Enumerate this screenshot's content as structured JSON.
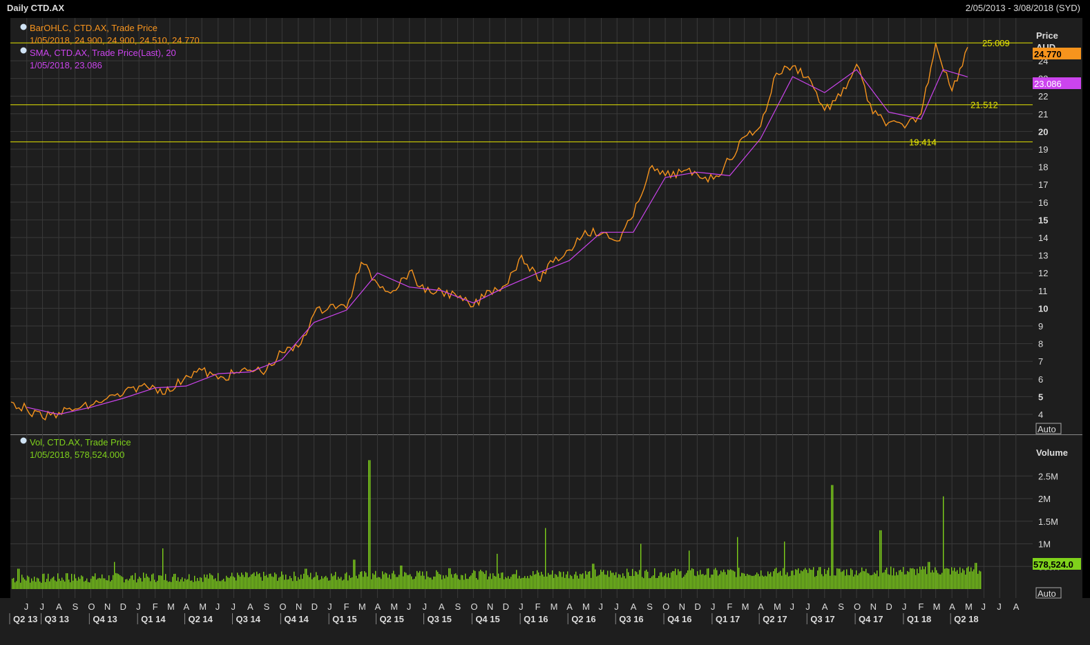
{
  "header": {
    "title": "Daily CTD.AX",
    "date_range": "2/05/2013 - 3/08/2018 (SYD)"
  },
  "price_panel": {
    "legend_ohlc": "BarOHLC, CTD.AX, Trade Price",
    "legend_ohlc_values": "1/05/2018, 24.900, 24.900, 24.510, 24.770",
    "legend_sma": "SMA, CTD.AX, Trade Price(Last),  20",
    "legend_sma_values": "1/05/2018, 23.086",
    "axis_title": "Price",
    "axis_unit": "AUD",
    "last_price_tag": "24.770",
    "sma_tag": "23.086",
    "auto_label": "Auto",
    "hlines": [
      {
        "value": 25.009,
        "label": "25.009"
      },
      {
        "value": 21.512,
        "label": "21.512"
      },
      {
        "value": 19.414,
        "label": "19.414"
      }
    ]
  },
  "volume_panel": {
    "legend_vol": "Vol, CTD.AX, Trade Price",
    "legend_vol_values": "1/05/2018, 578,524.000",
    "axis_title": "Volume",
    "last_volume_tag": "578,524.0",
    "auto_label": "Auto",
    "ticks": [
      "2.5M",
      "2M",
      "1.5M",
      "1M",
      "500K"
    ]
  },
  "x_axis": {
    "months": [
      "J",
      "J",
      "A",
      "S",
      "O",
      "N",
      "D",
      "J",
      "F",
      "M",
      "A",
      "M",
      "J",
      "J",
      "A",
      "S",
      "O",
      "N",
      "D",
      "J",
      "F",
      "M",
      "A",
      "M",
      "J",
      "J",
      "A",
      "S",
      "O",
      "N",
      "D",
      "J",
      "F",
      "M",
      "A",
      "M",
      "J",
      "J",
      "A",
      "S",
      "O",
      "N",
      "D",
      "J",
      "F",
      "M",
      "A",
      "M",
      "J",
      "J",
      "A",
      "S",
      "O",
      "N",
      "D",
      "J",
      "F",
      "M",
      "A",
      "M",
      "J",
      "J",
      "A"
    ],
    "quarters": [
      "Q2 13",
      "Q3 13",
      "Q4 13",
      "Q1 14",
      "Q2 14",
      "Q3 14",
      "Q4 14",
      "Q1 15",
      "Q2 15",
      "Q3 15",
      "Q4 15",
      "Q1 16",
      "Q2 16",
      "Q3 16",
      "Q4 16",
      "Q1 17",
      "Q2 17",
      "Q3 17",
      "Q4 17",
      "Q1 18",
      "Q2 18"
    ]
  },
  "colors": {
    "background": "#000000",
    "panel": "#1e1e1e",
    "grid": "#3a3a3a",
    "price": "#f7941d",
    "sma": "#cc44ee",
    "volume": "#7fd21b",
    "hline": "#e8e800"
  },
  "chart_data": [
    {
      "type": "line",
      "title": "Daily CTD.AX",
      "ylabel": "Price",
      "ylim": [
        4,
        26
      ],
      "y_ticks": [
        4,
        5,
        6,
        7,
        8,
        9,
        10,
        11,
        12,
        13,
        14,
        15,
        16,
        17,
        18,
        19,
        20,
        21,
        22,
        23,
        24
      ],
      "series": [
        {
          "name": "BarOHLC, CTD.AX, Trade Price",
          "x": [
            "2013-05-02",
            "2013-06-01",
            "2013-07-01",
            "2013-08-01",
            "2013-09-01",
            "2013-10-01",
            "2013-11-01",
            "2013-12-01",
            "2014-01-01",
            "2014-02-01",
            "2014-03-01",
            "2014-04-01",
            "2014-05-01",
            "2014-06-01",
            "2014-07-01",
            "2014-08-01",
            "2014-09-01",
            "2014-10-01",
            "2014-11-01",
            "2014-12-01",
            "2015-01-01",
            "2015-02-01",
            "2015-03-01",
            "2015-04-01",
            "2015-05-01",
            "2015-06-01",
            "2015-07-01",
            "2015-08-01",
            "2015-09-01",
            "2015-10-01",
            "2015-11-01",
            "2015-12-01",
            "2016-01-01",
            "2016-02-01",
            "2016-03-01",
            "2016-04-01",
            "2016-05-01",
            "2016-06-01",
            "2016-07-01",
            "2016-08-01",
            "2016-09-01",
            "2016-10-01",
            "2016-11-01",
            "2016-12-01",
            "2017-01-01",
            "2017-02-01",
            "2017-03-01",
            "2017-04-01",
            "2017-05-01",
            "2017-06-01",
            "2017-07-01",
            "2017-08-01",
            "2017-09-01",
            "2017-10-01",
            "2017-11-01",
            "2017-12-01",
            "2018-01-01",
            "2018-02-01",
            "2018-03-01",
            "2018-04-01",
            "2018-05-01"
          ],
          "values": [
            4.7,
            4.3,
            3.8,
            4.1,
            4.3,
            4.5,
            4.9,
            5.1,
            5.6,
            5.5,
            5.3,
            6.2,
            6.5,
            6.0,
            6.3,
            6.5,
            6.5,
            7.5,
            7.8,
            9.7,
            10.2,
            10.0,
            12.6,
            11.4,
            11.0,
            12.1,
            10.9,
            11.0,
            10.6,
            10.1,
            11.0,
            11.3,
            13.0,
            11.6,
            12.6,
            13.3,
            14.4,
            14.2,
            13.8,
            15.2,
            17.9,
            17.5,
            17.7,
            17.6,
            17.3,
            18.4,
            19.7,
            20.3,
            23.3,
            23.7,
            23.1,
            21.2,
            22.0,
            23.8,
            21.0,
            20.5,
            20.2,
            21.0,
            25.0,
            22.3,
            24.77
          ]
        },
        {
          "name": "SMA, CTD.AX, Trade Price(Last),  20",
          "x": [
            "2013-06-01",
            "2013-08-01",
            "2013-10-01",
            "2013-12-01",
            "2014-02-01",
            "2014-04-01",
            "2014-06-01",
            "2014-08-01",
            "2014-10-01",
            "2014-12-01",
            "2015-02-01",
            "2015-04-01",
            "2015-06-01",
            "2015-08-01",
            "2015-10-01",
            "2015-12-01",
            "2016-02-01",
            "2016-04-01",
            "2016-06-01",
            "2016-08-01",
            "2016-10-01",
            "2016-12-01",
            "2017-02-01",
            "2017-04-01",
            "2017-06-01",
            "2017-08-01",
            "2017-10-01",
            "2017-12-01",
            "2018-02-01",
            "2018-03-15",
            "2018-05-01"
          ],
          "values": [
            4.4,
            4.0,
            4.4,
            4.9,
            5.5,
            5.6,
            6.3,
            6.4,
            7.1,
            9.2,
            9.9,
            12.0,
            11.2,
            11.0,
            10.3,
            11.2,
            12.0,
            12.7,
            14.3,
            14.3,
            17.4,
            17.7,
            17.5,
            19.6,
            23.1,
            22.2,
            23.5,
            21.1,
            20.7,
            23.5,
            23.086
          ]
        }
      ]
    },
    {
      "type": "bar",
      "title": "Vol, CTD.AX, Trade Price",
      "ylabel": "Volume",
      "ylim": [
        0,
        3000000
      ],
      "categories": [
        "2013-05",
        "2013-08",
        "2013-11",
        "2014-02",
        "2014-05",
        "2014-08",
        "2014-11",
        "2015-02",
        "2015-03",
        "2015-05",
        "2015-08",
        "2015-11",
        "2016-02",
        "2016-05",
        "2016-08",
        "2016-11",
        "2017-02",
        "2017-05",
        "2017-08",
        "2017-11",
        "2018-02",
        "2018-03",
        "2018-05"
      ],
      "values": [
        450000,
        350000,
        600000,
        900000,
        350000,
        330000,
        450000,
        650000,
        2850000,
        520000,
        460000,
        780000,
        1350000,
        560000,
        1000000,
        850000,
        1150000,
        1050000,
        2300000,
        1300000,
        600000,
        2050000,
        578524
      ]
    }
  ]
}
